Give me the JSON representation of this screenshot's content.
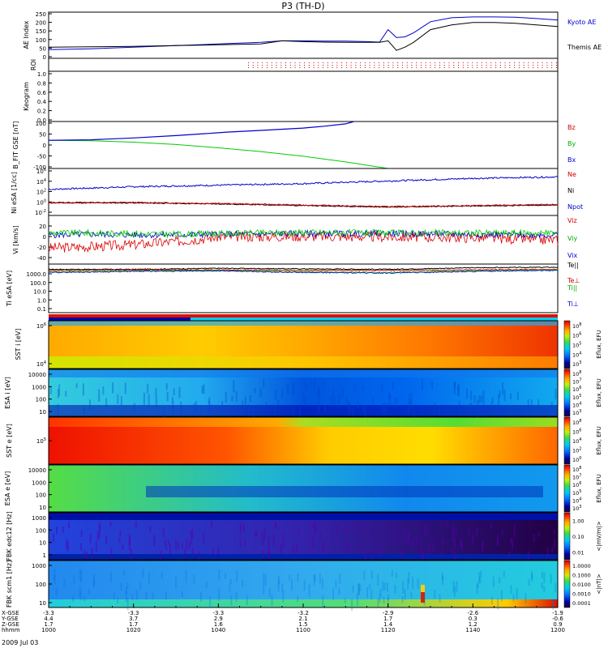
{
  "chart_data": {
    "type": "line",
    "title": "P3 (TH-D)",
    "date_label": "2009 Jul 03",
    "x_ticks": [
      "1000",
      "1020",
      "1040",
      "1100",
      "1120",
      "1140",
      "1200"
    ],
    "x_minutes": [
      0,
      20,
      40,
      60,
      80,
      100,
      120
    ],
    "x_range_minutes": [
      0,
      120
    ],
    "ephemeris_rows": [
      {
        "label": "X-GSE",
        "values": [
          "-3.3",
          "-3.3",
          "-3.3",
          "-3.2",
          "-2.9",
          "-2.6",
          "-1.9"
        ]
      },
      {
        "label": "Y-GSE",
        "values": [
          "4.4",
          "3.7",
          "2.9",
          "2.1",
          "1.7",
          "0.3",
          "-0.6"
        ]
      },
      {
        "label": "Z-GSE",
        "values": [
          "1.7",
          "1.7",
          "1.6",
          "1.5",
          "1.4",
          "1.2",
          "0.9"
        ]
      },
      {
        "label": "hhmm",
        "values": [
          "1000",
          "1020",
          "1040",
          "1100",
          "1120",
          "1140",
          "1200"
        ]
      }
    ],
    "panels": [
      {
        "id": "ae",
        "ylabel": "AE Index",
        "y_ticks": [
          "250",
          "200",
          "150",
          "100",
          "50",
          "0"
        ],
        "y_range": [
          -30,
          260
        ],
        "series": [
          {
            "name": "Kyoto AE",
            "color": "#0000cc",
            "x": [
              0,
              10,
              20,
              30,
              40,
              50,
              55,
              60,
              65,
              70,
              75,
              78,
              80,
              82,
              84,
              86,
              90,
              95,
              100,
              105,
              110,
              115,
              120
            ],
            "y": [
              25,
              30,
              40,
              50,
              60,
              70,
              80,
              80,
              78,
              78,
              75,
              72,
              150,
              100,
              105,
              130,
              200,
              225,
              230,
              230,
              228,
              220,
              210
            ]
          },
          {
            "name": "Themis AE",
            "color": "#000000",
            "x": [
              0,
              10,
              20,
              30,
              40,
              50,
              55,
              60,
              65,
              70,
              75,
              78,
              80,
              82,
              84,
              86,
              90,
              95,
              100,
              105,
              110,
              115,
              120
            ],
            "y": [
              40,
              42,
              45,
              50,
              55,
              60,
              80,
              75,
              72,
              70,
              70,
              70,
              80,
              20,
              40,
              70,
              150,
              180,
              195,
              195,
              190,
              180,
              170
            ]
          }
        ]
      },
      {
        "id": "roi",
        "ylabel": "ROI",
        "y_ticks": [],
        "roi_start_minute": 47,
        "roi_color": "#cc0000"
      },
      {
        "id": "keogram",
        "ylabel": "Keogram",
        "y_ticks": [
          "1.0",
          "0.8",
          "0.6",
          "0.4",
          "0.2",
          "0.0"
        ],
        "y_range": [
          0,
          1
        ]
      },
      {
        "id": "bfit",
        "ylabel": "B_FIT GSE [nT]",
        "y_ticks": [
          "100",
          "50",
          "0",
          "-50",
          "-100"
        ],
        "y_range": [
          -100,
          100
        ],
        "series": [
          {
            "name": "Bz",
            "color": "#cc0000",
            "x": [],
            "y": []
          },
          {
            "name": "By",
            "color": "#00cc00",
            "x": [
              0,
              10,
              20,
              30,
              40,
              50,
              60,
              70,
              80
            ],
            "y": [
              20,
              18,
              12,
              2,
              -12,
              -28,
              -48,
              -72,
              -100
            ]
          },
          {
            "name": "Bx",
            "color": "#0000cc",
            "x": [
              0,
              10,
              20,
              30,
              40,
              42,
              50,
              60,
              65,
              70,
              72
            ],
            "y": [
              20,
              22,
              30,
              40,
              52,
              55,
              62,
              72,
              80,
              90,
              100
            ]
          }
        ]
      },
      {
        "id": "ni",
        "ylabel": "Ni eSA [1/cc]",
        "y_ticks": [
          "10^6",
          "10^4",
          "10^2",
          "10^0",
          "10^-2"
        ],
        "y_range": [
          -2.5,
          6.5
        ],
        "series": [
          {
            "name": "Ne",
            "color": "#cc0000",
            "x": [
              0,
              20,
              40,
              60,
              80,
              100,
              120
            ],
            "y": [
              0,
              0,
              -0.2,
              -0.5,
              -0.8,
              -0.6,
              -0.4
            ]
          },
          {
            "name": "Ni",
            "color": "#000000",
            "x": [
              0,
              20,
              40,
              60,
              80,
              100,
              120
            ],
            "y": [
              -0.1,
              -0.1,
              -0.3,
              -0.6,
              -0.9,
              -0.7,
              -0.5
            ]
          },
          {
            "name": "Npot",
            "color": "#0000cc",
            "x": [
              0,
              20,
              40,
              60,
              80,
              100,
              120
            ],
            "y": [
              2.5,
              3.0,
              3.3,
              3.6,
              4.1,
              4.6,
              4.9
            ]
          }
        ]
      },
      {
        "id": "vi",
        "ylabel": "Vi [km/s]",
        "y_ticks": [
          "20",
          "0",
          "-20",
          "-40"
        ],
        "y_range": [
          -45,
          30
        ],
        "series": [
          {
            "name": "Viz",
            "color": "#cc0000",
            "x": [
              0,
              10,
              20,
              30,
              40,
              60,
              80,
              100,
              120
            ],
            "y": [
              -20,
              -18,
              -15,
              -10,
              -3,
              -2,
              -3,
              -4,
              -8
            ]
          },
          {
            "name": "Viy",
            "color": "#00cc00",
            "x": [
              0,
              10,
              20,
              30,
              40,
              60,
              80,
              100,
              120
            ],
            "y": [
              3,
              3,
              2,
              1,
              2,
              4,
              3,
              3,
              3
            ]
          },
          {
            "name": "Vix",
            "color": "#0000cc",
            "x": [
              0,
              10,
              20,
              30,
              40,
              60,
              80,
              100,
              120
            ],
            "y": [
              0,
              1,
              0,
              0,
              1,
              2,
              2,
              1,
              0
            ]
          }
        ]
      },
      {
        "id": "ti",
        "ylabel": "Ti eSA [eV]",
        "y_ticks": [
          "1000.0",
          "100.0",
          "10.0",
          "1.0",
          "0.1"
        ],
        "y_range": [
          -1.3,
          3.3
        ],
        "series": [
          {
            "name": "Te||",
            "color": "#000000",
            "x": [
              0,
              20,
              40,
              60,
              80,
              100,
              120
            ],
            "y": [
              2.8,
              2.8,
              2.9,
              2.85,
              2.8,
              2.95,
              3.0
            ]
          },
          {
            "name": "Te⊥",
            "color": "#cc0000",
            "x": [
              0,
              20,
              40,
              60,
              80,
              100,
              120
            ],
            "y": [
              2.7,
              2.75,
              2.75,
              2.7,
              2.7,
              2.75,
              2.8
            ]
          },
          {
            "name": "Ti||",
            "color": "#00cc00",
            "x": [
              0,
              20,
              40,
              60,
              80,
              100,
              120
            ],
            "y": [
              2.55,
              2.65,
              2.7,
              2.55,
              2.5,
              2.65,
              2.75
            ]
          },
          {
            "name": "Ti⊥",
            "color": "#0000cc",
            "x": [
              0,
              20,
              40,
              60,
              80,
              100,
              120
            ],
            "y": [
              2.5,
              2.6,
              2.65,
              2.5,
              2.45,
              2.6,
              2.7
            ]
          }
        ]
      }
    ],
    "spectrograms": [
      {
        "id": "sst_i",
        "ylabel": "SST i [eV]",
        "y_ticks": [
          "10^6",
          "10^4"
        ],
        "colorbar_ticks": [
          "10^8",
          "10^6",
          "10^5",
          "10^4",
          "10^3"
        ],
        "colorbar_label": "Eflux, EFU"
      },
      {
        "id": "esa_i",
        "ylabel": "ESA i [eV]",
        "y_ticks": [
          "10000",
          "1000",
          "100",
          "10"
        ],
        "colorbar_ticks": [
          "10^8",
          "10^7",
          "10^6",
          "10^5",
          "10^4",
          "10^3"
        ],
        "colorbar_label": "Eflux, EFU"
      },
      {
        "id": "sst_e",
        "ylabel": "SST e [eV]",
        "y_ticks": [
          "10^5"
        ],
        "colorbar_ticks": [
          "10^8",
          "10^6",
          "10^4",
          "10^2",
          "10^0"
        ],
        "colorbar_label": "Eflux, EFU"
      },
      {
        "id": "esa_e",
        "ylabel": "ESA e [eV]",
        "y_ticks": [
          "10000",
          "1000",
          "100",
          "10"
        ],
        "colorbar_ticks": [
          "10^8",
          "10^7",
          "10^6",
          "10^5",
          "10^4",
          "10^3"
        ],
        "colorbar_label": "Eflux, EFU"
      },
      {
        "id": "fbk_edc",
        "ylabel": "FBK edc12 [Hz]",
        "y_ticks": [
          "1000",
          "100",
          "10",
          "1"
        ],
        "colorbar_ticks": [
          "1.00",
          "0.10",
          "0.01"
        ],
        "colorbar_label": "<|mV/m|>"
      },
      {
        "id": "fbk_scm",
        "ylabel": "FBK scm1 [Hz]",
        "y_ticks": [
          "1000",
          "100",
          "10"
        ],
        "colorbar_ticks": [
          "1.0000",
          "0.1000",
          "0.0100",
          "0.0010",
          "0.0001"
        ],
        "colorbar_label": "<|nT|>"
      }
    ]
  }
}
